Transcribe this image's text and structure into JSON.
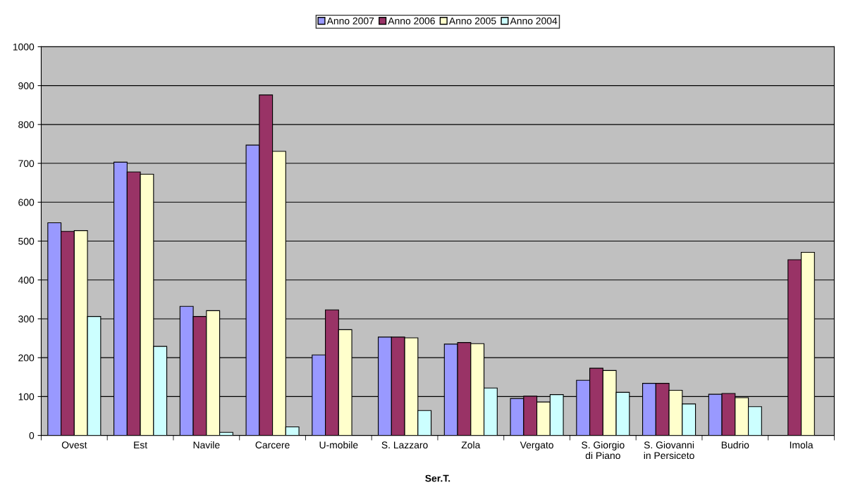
{
  "chart_data": {
    "type": "bar",
    "xlabel": "Ser.T.",
    "categories": [
      "Ovest",
      "Est",
      "Navile",
      "Carcere",
      "U-mobile",
      "S. Lazzaro",
      "Zola",
      "Vergato",
      "S. Giorgio\ndi Piano",
      "S. Giovanni\nin Persiceto",
      "Budrio",
      "Imola"
    ],
    "series": [
      {
        "name": "Anno 2007",
        "color": "#9999ff",
        "values": [
          547,
          703,
          332,
          747,
          207,
          253,
          235,
          95,
          142,
          134,
          106,
          null
        ]
      },
      {
        "name": "Anno 2006",
        "color": "#993366",
        "values": [
          525,
          678,
          306,
          876,
          323,
          253,
          239,
          101,
          173,
          134,
          108,
          452
        ]
      },
      {
        "name": "Anno 2005",
        "color": "#ffffcc",
        "values": [
          527,
          672,
          321,
          731,
          272,
          251,
          236,
          86,
          167,
          116,
          97,
          471
        ]
      },
      {
        "name": "Anno 2004",
        "color": "#ccffff",
        "values": [
          306,
          229,
          8,
          22,
          null,
          64,
          122,
          105,
          111,
          81,
          74,
          null
        ]
      }
    ],
    "ylim": [
      0,
      1000
    ],
    "yticks": [
      0,
      100,
      200,
      300,
      400,
      500,
      600,
      700,
      800,
      900,
      1000
    ],
    "grid": "y",
    "legend": "top"
  }
}
